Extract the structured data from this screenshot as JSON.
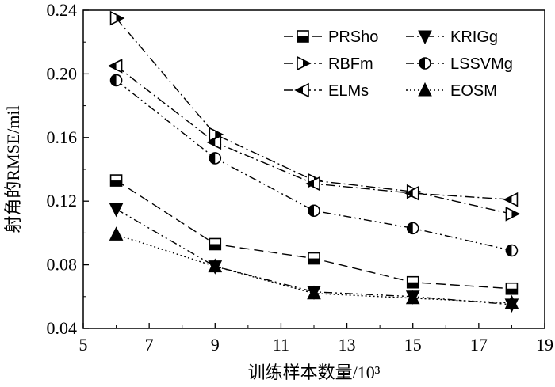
{
  "chart_data": {
    "type": "line",
    "xlabel": "训练样本数量/10³",
    "ylabel": "射角的RMSE/mil",
    "xlim": [
      5,
      19
    ],
    "ylim": [
      0.04,
      0.24
    ],
    "xticks": [
      5,
      7,
      9,
      11,
      13,
      15,
      17,
      19
    ],
    "yticks": [
      0.04,
      0.08,
      0.12,
      0.16,
      0.2,
      0.24
    ],
    "ytick_labels": [
      "0.04",
      "0.08",
      "0.12",
      "0.16",
      "0.20",
      "0.24"
    ],
    "grid": false,
    "legend_position": "top-right",
    "x": [
      6,
      9,
      12,
      15,
      18
    ],
    "series": [
      {
        "name": "PRSho",
        "values": [
          0.133,
          0.093,
          0.084,
          0.069,
          0.065
        ],
        "marker": "square-half",
        "dash": "dashed",
        "color": "#000000"
      },
      {
        "name": "KRIGg",
        "values": [
          0.115,
          0.079,
          0.063,
          0.06,
          0.055
        ],
        "marker": "triangle-down",
        "dash": "dash-dot-dot",
        "color": "#000000"
      },
      {
        "name": "RBFm",
        "values": [
          0.235,
          0.162,
          0.133,
          0.126,
          0.112
        ],
        "marker": "triangle-right-half",
        "dash": "dash-dot",
        "color": "#000000"
      },
      {
        "name": "LSSVMg",
        "values": [
          0.196,
          0.147,
          0.114,
          0.103,
          0.089
        ],
        "marker": "circle-half",
        "dash": "dash-dot-dot",
        "color": "#000000"
      },
      {
        "name": "ELMs",
        "values": [
          0.205,
          0.157,
          0.131,
          0.125,
          0.121
        ],
        "marker": "triangle-left-half",
        "dash": "dash-dot",
        "color": "#000000"
      },
      {
        "name": "EOSM",
        "values": [
          0.099,
          0.079,
          0.062,
          0.059,
          0.056
        ],
        "marker": "triangle-up",
        "dash": "dotted",
        "color": "#000000"
      }
    ]
  }
}
